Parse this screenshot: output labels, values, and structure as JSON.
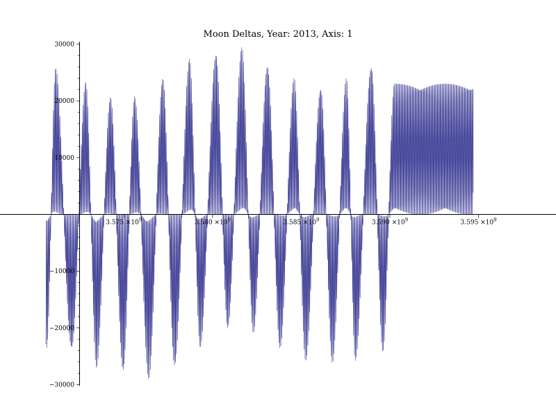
{
  "chart_data": {
    "type": "line",
    "title": "Moon Deltas, Year: 2013, Axis: 1",
    "xlabel": "",
    "ylabel": "",
    "xlim": [
      3568600000.0,
      3598700000.0
    ],
    "ylim": [
      -30000,
      30000
    ],
    "x_ticks": [
      {
        "value": 3575000000.0,
        "label_mantissa": "3.575",
        "label_times": "×10",
        "label_exp": "9"
      },
      {
        "value": 3580000000.0,
        "label_mantissa": "3.580",
        "label_times": "×10",
        "label_exp": "9"
      },
      {
        "value": 3585000000.0,
        "label_mantissa": "3.585",
        "label_times": "×10",
        "label_exp": "9"
      },
      {
        "value": 3590000000.0,
        "label_mantissa": "3.590",
        "label_times": "×10",
        "label_exp": "9"
      },
      {
        "value": 3595000000.0,
        "label_mantissa": "3.595",
        "label_times": "×10",
        "label_exp": "9"
      }
    ],
    "y_ticks": [
      {
        "value": 30000,
        "label": "30000"
      },
      {
        "value": 20000,
        "label": "20000"
      },
      {
        "value": 10000,
        "label": "10000"
      },
      {
        "value": -10000,
        "label": "−10000"
      },
      {
        "value": -20000,
        "label": "−20000"
      },
      {
        "value": -30000,
        "label": "−30000"
      }
    ],
    "grid": false,
    "legend": "none",
    "color": "#3a3a94",
    "series": [
      {
        "envelope_peaks": [
          {
            "x": 3568650000.0,
            "y": 26000
          },
          {
            "x": 3569250000.0,
            "y": -25500
          },
          {
            "x": 3569950000.0,
            "y": 26500
          },
          {
            "x": 3570650000.0,
            "y": -23500
          },
          {
            "x": 3571150000.0,
            "y": 26000
          },
          {
            "x": 3572050000.0,
            "y": -24500
          },
          {
            "x": 3572850000.0,
            "y": 23500
          },
          {
            "x": 3573450000.0,
            "y": -27000
          },
          {
            "x": 3574250000.0,
            "y": 21000
          },
          {
            "x": 3574950000.0,
            "y": -28500
          },
          {
            "x": 3575600000.0,
            "y": 21000
          },
          {
            "x": 3576400000.0,
            "y": -29000
          },
          {
            "x": 3577200000.0,
            "y": 24500
          },
          {
            "x": 3577850000.0,
            "y": -27500
          },
          {
            "x": 3578700000.0,
            "y": 27500
          },
          {
            "x": 3579300000.0,
            "y": -23500
          },
          {
            "x": 3580200000.0,
            "y": 29000
          },
          {
            "x": 3580850000.0,
            "y": -20500
          },
          {
            "x": 3581650000.0,
            "y": 29500
          },
          {
            "x": 3582300000.0,
            "y": -21000
          },
          {
            "x": 3583100000.0,
            "y": 27000
          },
          {
            "x": 3583800000.0,
            "y": -24000
          },
          {
            "x": 3584600000.0,
            "y": 24000
          },
          {
            "x": 3585250000.0,
            "y": -26000
          },
          {
            "x": 3586100000.0,
            "y": 23000
          },
          {
            "x": 3586750000.0,
            "y": -26500
          },
          {
            "x": 3587550000.0,
            "y": 24000
          },
          {
            "x": 3588050000.0,
            "y": -26000
          },
          {
            "x": 3588950000.0,
            "y": 27000
          },
          {
            "x": 3589600000.0,
            "y": -24500
          },
          {
            "x": 3590250000.0,
            "y": 23000
          }
        ]
      }
    ]
  }
}
